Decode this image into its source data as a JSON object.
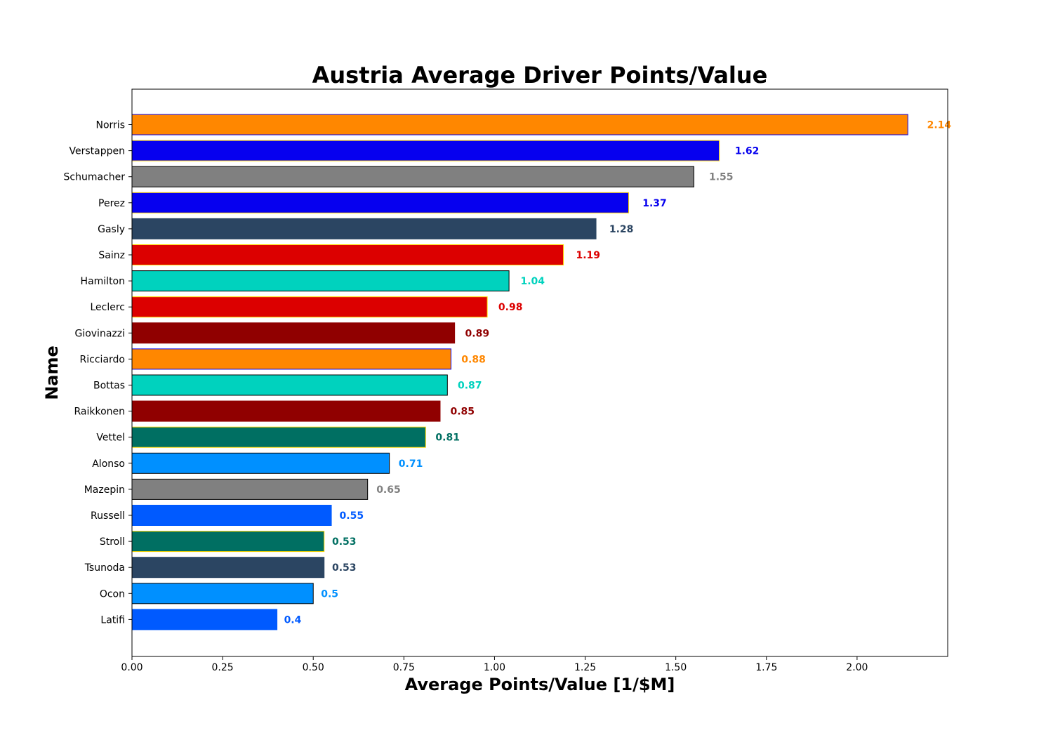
{
  "chart_data": {
    "type": "bar",
    "orientation": "horizontal",
    "title": "Austria Average Driver Points/Value",
    "xlabel": "Average Points/Value [1/$M]",
    "ylabel": "Name",
    "xlim": [
      0,
      2.25
    ],
    "xticks": [
      0.0,
      0.25,
      0.5,
      0.75,
      1.0,
      1.25,
      1.5,
      1.75,
      2.0
    ],
    "xtick_labels": [
      "0.00",
      "0.25",
      "0.50",
      "0.75",
      "1.00",
      "1.25",
      "1.50",
      "1.75",
      "2.00"
    ],
    "grid": false,
    "categories": [
      "Norris",
      "Verstappen",
      "Schumacher",
      "Perez",
      "Gasly",
      "Sainz",
      "Hamilton",
      "Leclerc",
      "Giovinazzi",
      "Ricciardo",
      "Bottas",
      "Raikkonen",
      "Vettel",
      "Alonso",
      "Mazepin",
      "Russell",
      "Stroll",
      "Tsunoda",
      "Ocon",
      "Latifi"
    ],
    "values": [
      2.14,
      1.62,
      1.55,
      1.37,
      1.28,
      1.19,
      1.04,
      0.98,
      0.89,
      0.88,
      0.87,
      0.85,
      0.81,
      0.71,
      0.65,
      0.55,
      0.53,
      0.53,
      0.5,
      0.4
    ],
    "value_labels": [
      "2.14",
      "1.62",
      "1.55",
      "1.37",
      "1.28",
      "1.19",
      "1.04",
      "0.98",
      "0.89",
      "0.88",
      "0.87",
      "0.85",
      "0.81",
      "0.71",
      "0.65",
      "0.55",
      "0.53",
      "0.53",
      "0.5",
      "0.4"
    ],
    "colors": [
      "#ff8700",
      "#0600ef",
      "#808080",
      "#0600ef",
      "#2b4562",
      "#dc0000",
      "#00d2be",
      "#dc0000",
      "#900000",
      "#ff8700",
      "#00d2be",
      "#900000",
      "#006f62",
      "#0090ff",
      "#808080",
      "#005aff",
      "#006f62",
      "#2b4562",
      "#0090ff",
      "#005aff"
    ],
    "edge_colors": [
      "#0600ef",
      "#ffd700",
      "#000000",
      "#ffd700",
      "#2b4562",
      "#ffd700",
      "#000000",
      "#ffd700",
      "#900000",
      "#0600ef",
      "#000000",
      "#900000",
      "#ffd700",
      "#000000",
      "#000000",
      "#005aff",
      "#ffd700",
      "#2b4562",
      "#000000",
      "#005aff"
    ]
  }
}
